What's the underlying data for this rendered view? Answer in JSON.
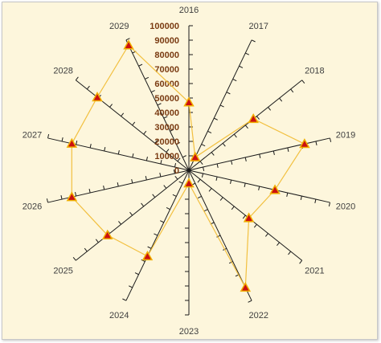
{
  "chart_data": {
    "type": "radar",
    "categories": [
      "2016",
      "2017",
      "2018",
      "2019",
      "2020",
      "2021",
      "2022",
      "2023",
      "2024",
      "2025",
      "2026",
      "2027",
      "2028",
      "2029"
    ],
    "series": [
      {
        "values": [
          47000,
          10000,
          57000,
          82000,
          61000,
          53000,
          90000,
          9000,
          66000,
          72000,
          83000,
          83000,
          81000,
          96000
        ]
      }
    ],
    "ylim": [
      0,
      100000
    ],
    "ticks": [
      "0",
      "10000",
      "20000",
      "30000",
      "40000",
      "50000",
      "60000",
      "70000",
      "80000",
      "90000",
      "100000"
    ],
    "grid": false,
    "legend": "none",
    "colors": {
      "line": "#f2c040",
      "marker_fill": "#cc1010",
      "marker_stroke": "#f0b000",
      "axis": "#1a1a1a",
      "tick_label": "#7a3b12",
      "background": "#fdf6dc"
    }
  }
}
